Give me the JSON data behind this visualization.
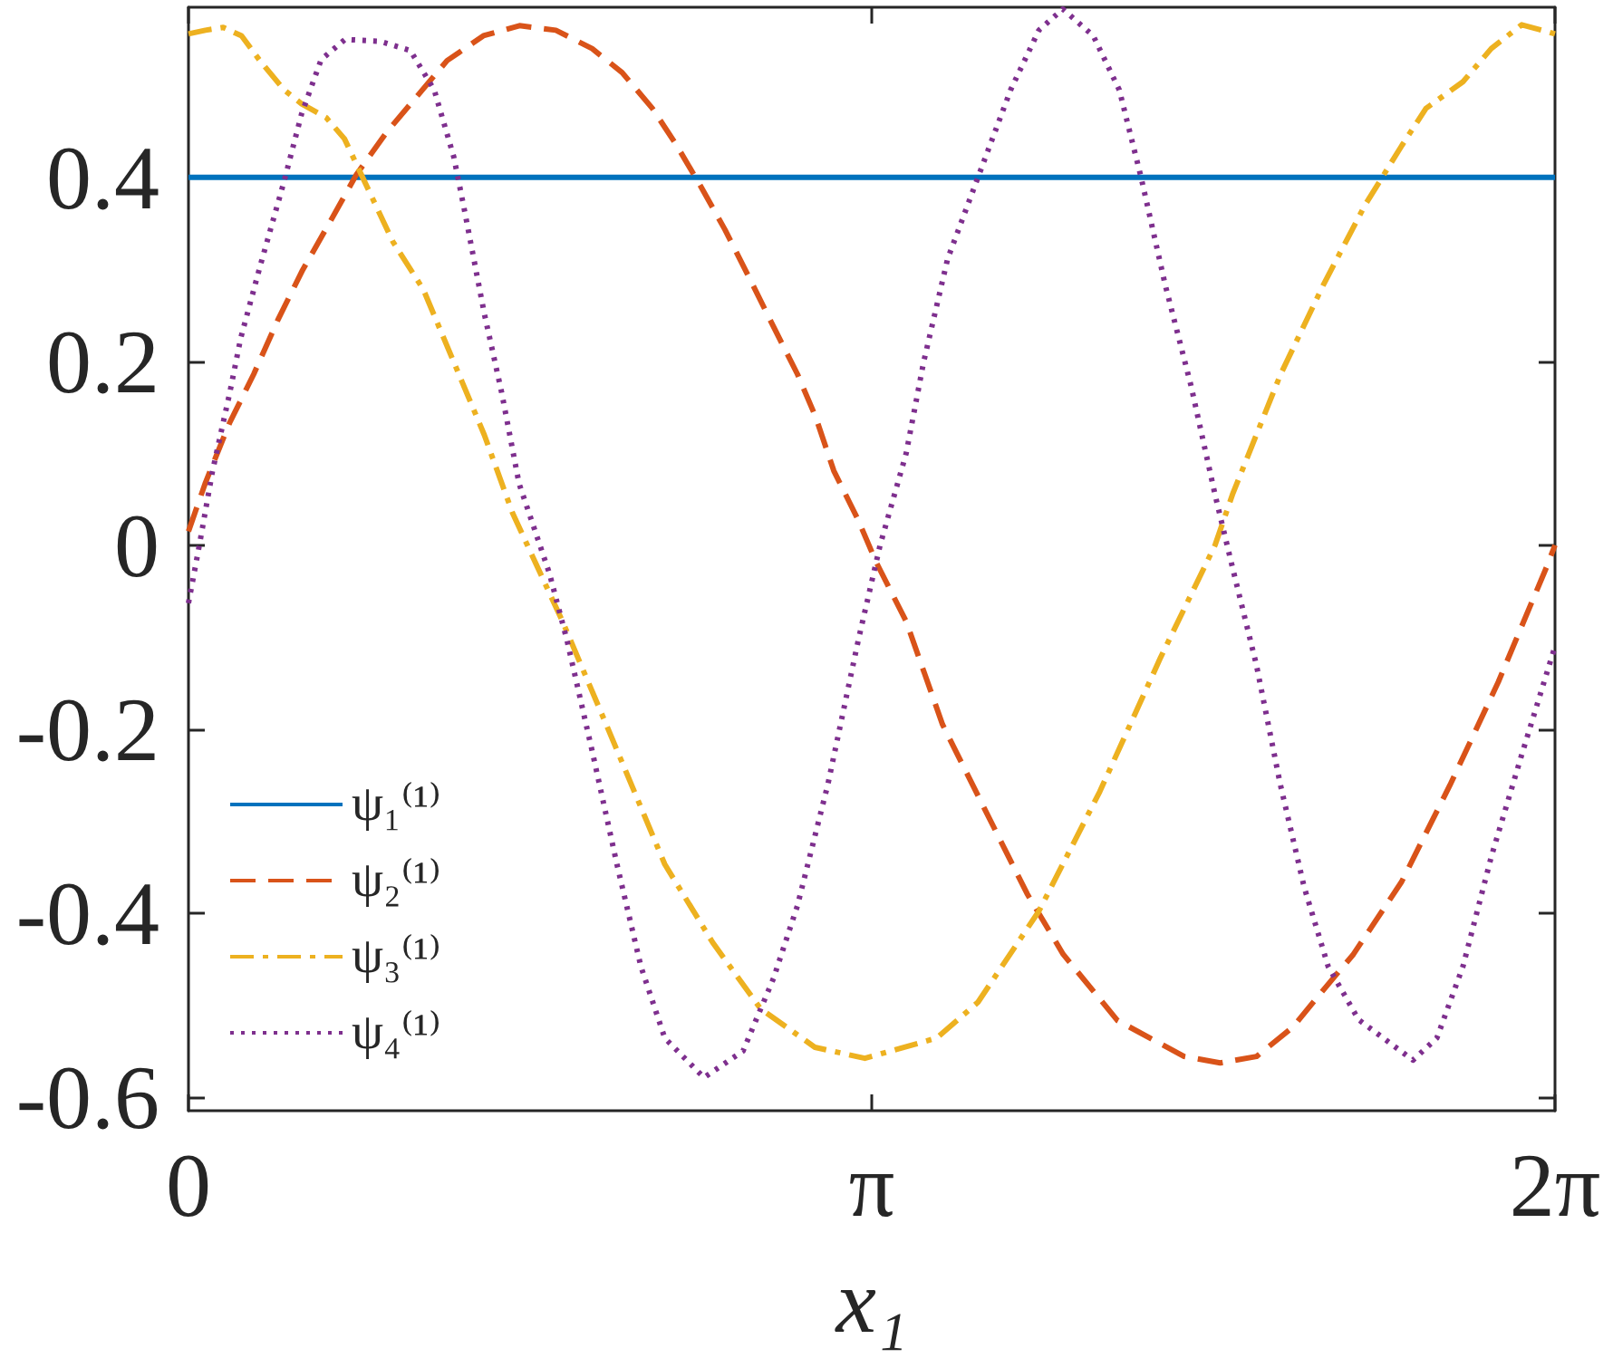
{
  "chart_data": {
    "type": "line",
    "xlabel": "x₁",
    "xlim": [
      0,
      6.28319
    ],
    "xticks": [
      0,
      {
        "value": 3.14159,
        "label": "π"
      },
      {
        "value": 6.28319,
        "label": "2π"
      }
    ],
    "ylim": [
      -0.615,
      0.585
    ],
    "yticks": [
      -0.6,
      -0.4,
      -0.2,
      0,
      0.2,
      0.4
    ],
    "grid": false,
    "legend": "bottom left",
    "series": [
      {
        "name": "ψ₁⁽¹⁾",
        "color": "#0072bd",
        "line_style": "solid",
        "x": [
          0,
          1.57,
          3.14,
          4.71,
          6.28319
        ],
        "values": [
          0.4,
          0.4,
          0.4,
          0.4,
          0.4
        ]
      },
      {
        "name": "ψ₂⁽¹⁾",
        "color": "#d95319",
        "line_style": "dashed",
        "x": [
          0,
          0.078,
          0.189,
          0.3,
          0.411,
          0.522,
          0.647,
          0.772,
          0.911,
          1.05,
          1.189,
          1.356,
          1.522,
          1.689,
          1.856,
          1.994,
          2.133,
          2.244,
          2.356,
          2.467,
          2.578,
          2.689,
          2.8,
          2.883,
          2.967,
          3.078,
          3.161,
          3.3,
          3.467,
          3.661,
          3.856,
          4.022,
          4.272,
          4.578,
          4.744,
          4.911,
          5.078,
          5.217,
          5.356,
          5.578,
          5.8,
          6.022,
          6.244,
          6.28319
        ],
        "values": [
          0.015,
          0.068,
          0.133,
          0.186,
          0.245,
          0.298,
          0.35,
          0.403,
          0.449,
          0.488,
          0.527,
          0.554,
          0.565,
          0.56,
          0.54,
          0.514,
          0.475,
          0.435,
          0.39,
          0.343,
          0.291,
          0.238,
          0.186,
          0.14,
          0.081,
          0.028,
          -0.018,
          -0.083,
          -0.195,
          -0.287,
          -0.379,
          -0.445,
          -0.517,
          -0.556,
          -0.563,
          -0.556,
          -0.524,
          -0.484,
          -0.445,
          -0.366,
          -0.261,
          -0.149,
          -0.024,
          0
        ]
      },
      {
        "name": "ψ₃⁽¹⁾",
        "color": "#edb120",
        "line_style": "dashdot",
        "x": [
          0,
          0.078,
          0.16,
          0.244,
          0.328,
          0.44,
          0.52,
          0.633,
          0.717,
          0.94,
          1.08,
          1.22,
          1.36,
          1.49,
          1.72,
          1.91,
          2.19,
          2.41,
          2.63,
          2.88,
          3.11,
          3.44,
          3.63,
          3.91,
          4.19,
          4.47,
          4.72,
          4.8,
          5.02,
          5.22,
          5.41,
          5.58,
          5.69,
          5.86,
          5.99,
          6.13,
          6.24,
          6.28319
        ],
        "values": [
          0.556,
          0.56,
          0.563,
          0.554,
          0.527,
          0.495,
          0.48,
          0.465,
          0.442,
          0.33,
          0.278,
          0.199,
          0.12,
          0.035,
          -0.083,
          -0.189,
          -0.347,
          -0.432,
          -0.504,
          -0.546,
          -0.558,
          -0.536,
          -0.497,
          -0.398,
          -0.268,
          -0.122,
          0,
          0.055,
          0.185,
          0.284,
          0.37,
          0.435,
          0.475,
          0.504,
          0.54,
          0.566,
          0.559,
          0.556
        ]
      },
      {
        "name": "ψ₄⁽¹⁾",
        "color": "#7e2f8e",
        "line_style": "dotted",
        "x": [
          0,
          0.05,
          0.11,
          0.19,
          0.24,
          0.33,
          0.44,
          0.52,
          0.61,
          0.72,
          0.88,
          1.02,
          1.13,
          1.22,
          1.27,
          1.36,
          1.44,
          1.52,
          1.66,
          1.74,
          1.86,
          1.97,
          2.08,
          2.19,
          2.37,
          2.55,
          2.69,
          2.8,
          2.94,
          3.08,
          3.18,
          3.3,
          3.38,
          3.49,
          3.63,
          3.78,
          3.91,
          4.02,
          4.16,
          4.28,
          4.38,
          4.49,
          4.61,
          4.72,
          4.8,
          4.91,
          5.02,
          5.13,
          5.24,
          5.38,
          5.63,
          5.74,
          5.86,
          5.99,
          6.13,
          6.28319
        ],
        "values": [
          -0.063,
          0,
          0.08,
          0.166,
          0.225,
          0.304,
          0.396,
          0.469,
          0.528,
          0.55,
          0.548,
          0.538,
          0.495,
          0.422,
          0.363,
          0.252,
          0.166,
          0.067,
          -0.031,
          -0.103,
          -0.228,
          -0.347,
          -0.458,
          -0.536,
          -0.579,
          -0.55,
          -0.471,
          -0.392,
          -0.26,
          -0.103,
          0,
          0.1,
          0.199,
          0.311,
          0.4,
          0.495,
          0.56,
          0.583,
          0.554,
          0.495,
          0.4,
          0.284,
          0.173,
          0.055,
          -0.024,
          -0.13,
          -0.26,
          -0.372,
          -0.458,
          -0.516,
          -0.56,
          -0.536,
          -0.458,
          -0.339,
          -0.228,
          -0.11
        ]
      }
    ]
  }
}
